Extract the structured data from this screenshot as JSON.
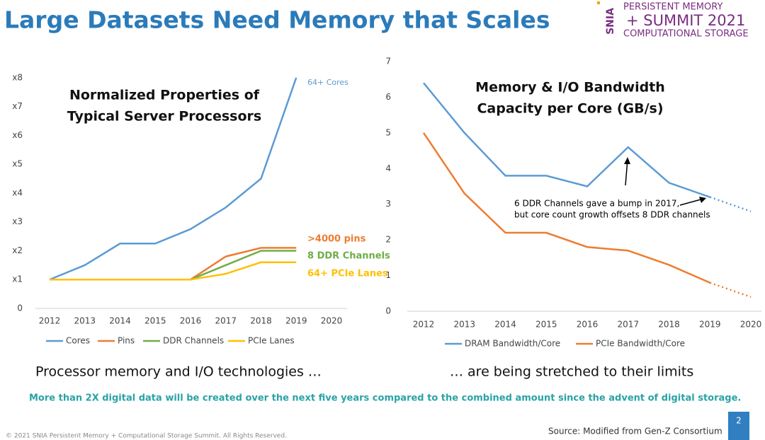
{
  "slide": {
    "title": "Large Datasets Need Memory that Scales",
    "logo": {
      "mark": "SNIA",
      "line1": "PERSISTENT MEMORY",
      "line2": "+ SUMMIT 2021",
      "line3": "COMPUTATIONAL STORAGE"
    },
    "caption_left": "Processor memory and I/O technologies …",
    "caption_right": "… are being stretched to their limits",
    "statement": "More than 2X digital data will be created over the next five years compared to the combined  amount since the advent of digital storage.",
    "copyright": "© 2021 SNIA Persistent Memory + Computational Storage Summit. All Rights Reserved.",
    "source": "Source: Modified from Gen-Z Consortium",
    "page": "2"
  },
  "chart_data": [
    {
      "type": "line",
      "title": [
        "Normalized Properties of",
        "Typical Server Processors"
      ],
      "categories": [
        "2012",
        "2013",
        "2014",
        "2015",
        "2016",
        "2017",
        "2018",
        "2019",
        "2020"
      ],
      "ylim": [
        0,
        9
      ],
      "yticks": [
        0,
        {
          "value": 1,
          "label": "x1"
        },
        {
          "value": 2,
          "label": "x2"
        },
        {
          "value": 3,
          "label": "x3"
        },
        {
          "value": 4,
          "label": "x4"
        },
        {
          "value": 5,
          "label": "x5"
        },
        {
          "value": 6,
          "label": "x6"
        },
        {
          "value": 7,
          "label": "x7"
        },
        {
          "value": 8,
          "label": "x8"
        }
      ],
      "grid": false,
      "legend": "bottom",
      "series": [
        {
          "name": "Cores",
          "color": "#5b9bd5",
          "values": [
            1,
            1.5,
            2.25,
            2.25,
            2.75,
            3.5,
            4.5,
            8,
            null
          ]
        },
        {
          "name": "Pins",
          "color": "#ed7d31",
          "values": [
            1,
            1,
            1,
            1,
            1,
            1.8,
            2.1,
            2.1,
            null
          ]
        },
        {
          "name": "DDR Channels",
          "color": "#70ad47",
          "values": [
            1,
            1,
            1,
            1,
            1,
            1.5,
            2,
            2,
            null
          ]
        },
        {
          "name": "PCIe Lanes",
          "color": "#ffc000",
          "values": [
            1,
            1,
            1,
            1,
            1,
            1.2,
            1.6,
            1.6,
            null
          ]
        }
      ],
      "annotations": [
        {
          "text": "64+ Cores",
          "color": "#5b9bd5"
        },
        {
          "text": ">4000 pins",
          "color": "#ed7d31"
        },
        {
          "text": "8 DDR Channels",
          "color": "#70ad47"
        },
        {
          "text": "64+ PCIe Lanes",
          "color": "#ffc000"
        }
      ]
    },
    {
      "type": "line",
      "title": [
        "Memory & I/O Bandwidth",
        "Capacity per Core (GB/s)"
      ],
      "categories": [
        "2012",
        "2013",
        "2014",
        "2015",
        "2016",
        "2017",
        "2018",
        "2019",
        "2020"
      ],
      "ylim": [
        0,
        7
      ],
      "yticks": [
        0,
        1,
        2,
        3,
        4,
        5,
        6,
        7
      ],
      "grid": false,
      "legend": "bottom",
      "series": [
        {
          "name": "DRAM Bandwidth/Core",
          "color": "#5b9bd5",
          "values": [
            6.4,
            5.0,
            3.8,
            3.8,
            3.5,
            4.6,
            3.6,
            3.2,
            2.8
          ],
          "dashed_from": 7
        },
        {
          "name": "PCIe Bandwidth/Core",
          "color": "#ed7d31",
          "values": [
            5.0,
            3.3,
            2.2,
            2.2,
            1.8,
            1.7,
            1.3,
            0.8,
            0.4
          ],
          "dashed_from": 7
        }
      ],
      "annotations": [
        {
          "text": [
            "6 DDR Channels gave a bump in 2017,",
            "but core count growth offsets 8 DDR channels"
          ],
          "color": "#000000"
        }
      ]
    }
  ]
}
